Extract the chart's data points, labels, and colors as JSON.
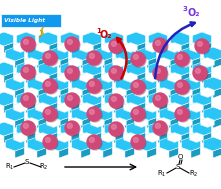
{
  "bg_color": "#ffffff",
  "cof_color": "#29C5F6",
  "cof_dark": "#1A9BC0",
  "cof_mid": "#20AEDD",
  "moiety_color": "#D04878",
  "moiety_dark": "#A03060",
  "moiety_highlight": "#E888A8",
  "vl_box_color": "#1199EE",
  "visible_light_text": "Visible Light",
  "o3_text_super": "3",
  "o3_text_main": "O₂",
  "o1_text_super": "1",
  "o1_text_main": "O₂",
  "arrow_red": "#CC0000",
  "arrow_blue": "#2222BB",
  "lightning_color": "#FFD700",
  "reaction_arrow_color": "#111111",
  "fig_width": 2.21,
  "fig_height": 1.89,
  "dpi": 100
}
